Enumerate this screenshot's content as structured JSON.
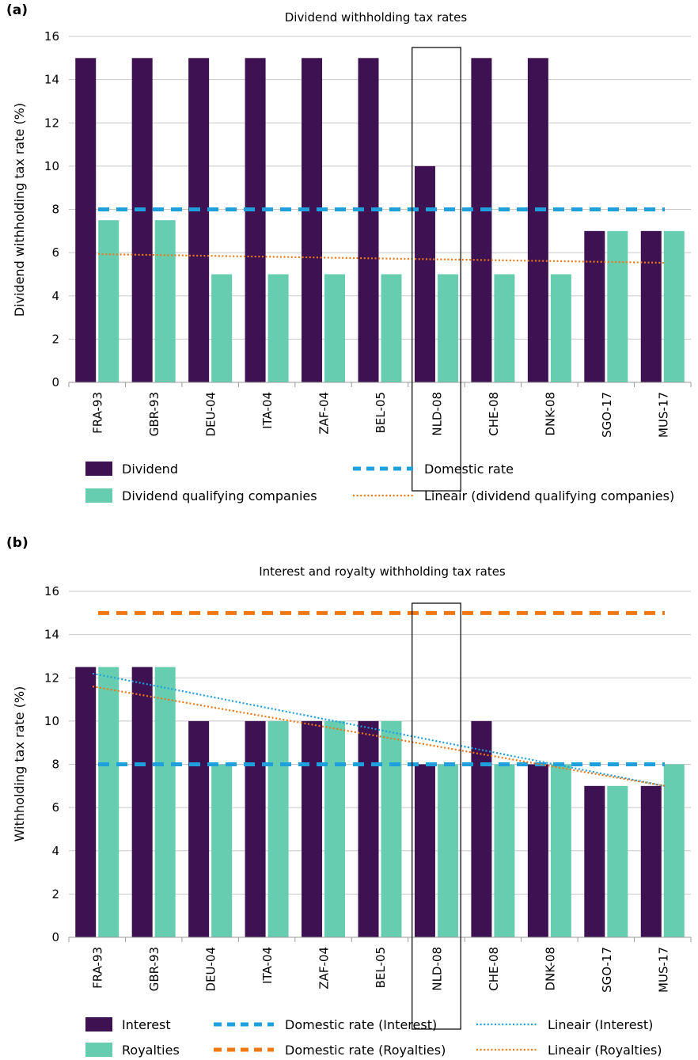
{
  "colors": {
    "dark": "#3d1152",
    "teal": "#66cdb0",
    "blue": "#1ea0dc",
    "orange": "#f07814"
  },
  "chart_data": [
    {
      "panel": "(a)",
      "type": "bar",
      "title": "Dividend withholding tax rates",
      "ylabel": "Dividend withholding tax rate (%)",
      "ylim": [
        0,
        16
      ],
      "yticks": [
        0,
        2,
        4,
        6,
        8,
        10,
        12,
        14,
        16
      ],
      "grid": true,
      "categories": [
        "FRA-93",
        "GBR-93",
        "DEU-04",
        "ITA-04",
        "ZAF-04",
        "BEL-05",
        "NLD-08",
        "CHE-08",
        "DNK-08",
        "SGO-17",
        "MUS-17"
      ],
      "highlight": "NLD-08",
      "series": [
        {
          "name": "Dividend",
          "values": [
            15,
            15,
            15,
            15,
            15,
            15,
            10,
            15,
            15,
            7,
            7
          ]
        },
        {
          "name": "Dividend qualifying companies",
          "values": [
            7.5,
            7.5,
            5,
            5,
            5,
            5,
            5,
            5,
            5,
            7,
            7
          ]
        }
      ],
      "lines": [
        {
          "name": "Domestic rate",
          "style": "dashed",
          "values": [
            8,
            8,
            8,
            8,
            8,
            8,
            8,
            8,
            8,
            8,
            8
          ]
        },
        {
          "name": "Lineair (dividend qualifying companies)",
          "style": "dotted",
          "values": [
            5.93,
            5.89,
            5.85,
            5.81,
            5.77,
            5.73,
            5.69,
            5.65,
            5.61,
            5.57,
            5.53
          ]
        }
      ],
      "legend": [
        [
          "Dividend",
          "Domestic rate"
        ],
        [
          "Dividend qualifying companies",
          "Lineair (dividend qualifying companies)"
        ]
      ]
    },
    {
      "panel": "(b)",
      "type": "bar",
      "title": "Interest and royalty withholding tax rates",
      "ylabel": "Withholding tax rate (%)",
      "ylim": [
        0,
        16
      ],
      "yticks": [
        0,
        2,
        4,
        6,
        8,
        10,
        12,
        14,
        16
      ],
      "grid": true,
      "categories": [
        "FRA-93",
        "GBR-93",
        "DEU-04",
        "ITA-04",
        "ZAF-04",
        "BEL-05",
        "NLD-08",
        "CHE-08",
        "DNK-08",
        "SGO-17",
        "MUS-17"
      ],
      "highlight": "NLD-08",
      "series": [
        {
          "name": "Interest",
          "values": [
            12.5,
            12.5,
            10,
            10,
            10,
            10,
            8,
            10,
            8,
            7,
            7
          ]
        },
        {
          "name": "Royalties",
          "values": [
            12.5,
            12.5,
            8,
            10,
            10,
            10,
            8,
            8,
            8,
            7,
            8
          ]
        }
      ],
      "lines": [
        {
          "name": "Domestic rate (Interest)",
          "style": "dashed",
          "values": [
            8,
            8,
            8,
            8,
            8,
            8,
            8,
            8,
            8,
            8,
            8
          ]
        },
        {
          "name": "Domestic rate (Royalties)",
          "style": "dashed",
          "values": [
            15,
            15,
            15,
            15,
            15,
            15,
            15,
            15,
            15,
            15,
            15
          ]
        },
        {
          "name": "Lineair (Interest)",
          "style": "dotted",
          "values": [
            12.2,
            11.68,
            11.16,
            10.64,
            10.12,
            9.6,
            9.08,
            8.56,
            8.04,
            7.52,
            7.0
          ]
        },
        {
          "name": "Lineair (Royalties)",
          "style": "dotted",
          "values": [
            11.6,
            11.14,
            10.68,
            10.22,
            9.76,
            9.3,
            8.84,
            8.38,
            7.92,
            7.46,
            7.0
          ]
        }
      ],
      "legend": [
        [
          "Interest",
          "Domestic rate (Interest)",
          "Lineair (Interest)"
        ],
        [
          "Royalties",
          "Domestic rate (Royalties)",
          "Lineair (Royalties)"
        ]
      ]
    }
  ]
}
